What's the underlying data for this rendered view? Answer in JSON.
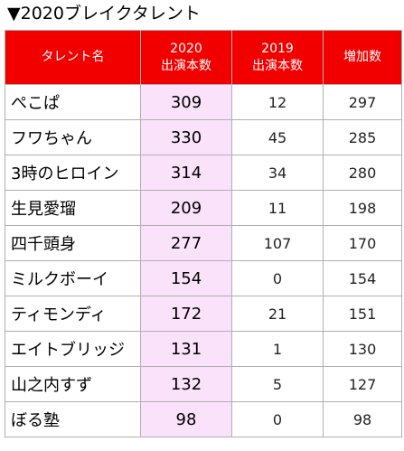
{
  "title": "▼2020ブレイクタレント",
  "colors": {
    "header_background": "#f20000",
    "header_text": "#ffffff",
    "highlight_column": "#fbe2fb",
    "border": "#b0b0b0"
  },
  "table": {
    "headers": {
      "name": "タレント名",
      "y2020": [
        "2020",
        "出演本数"
      ],
      "y2019": [
        "2019",
        "出演本数"
      ],
      "increase": "増加数"
    },
    "rows": [
      {
        "name": "ぺこぱ",
        "y2020": "309",
        "y2019": "12",
        "increase": "297"
      },
      {
        "name": "フワちゃん",
        "y2020": "330",
        "y2019": "45",
        "increase": "285"
      },
      {
        "name": "3時のヒロイン",
        "y2020": "314",
        "y2019": "34",
        "increase": "280"
      },
      {
        "name": "生見愛瑠",
        "y2020": "209",
        "y2019": "11",
        "increase": "198"
      },
      {
        "name": "四千頭身",
        "y2020": "277",
        "y2019": "107",
        "increase": "170"
      },
      {
        "name": "ミルクボーイ",
        "y2020": "154",
        "y2019": "0",
        "increase": "154"
      },
      {
        "name": "ティモンディ",
        "y2020": "172",
        "y2019": "21",
        "increase": "151"
      },
      {
        "name": "エイトブリッジ",
        "y2020": "131",
        "y2019": "1",
        "increase": "130"
      },
      {
        "name": "山之内すず",
        "y2020": "132",
        "y2019": "5",
        "increase": "127"
      },
      {
        "name": "ぼる塾",
        "y2020": "98",
        "y2019": "0",
        "increase": "98"
      }
    ]
  }
}
